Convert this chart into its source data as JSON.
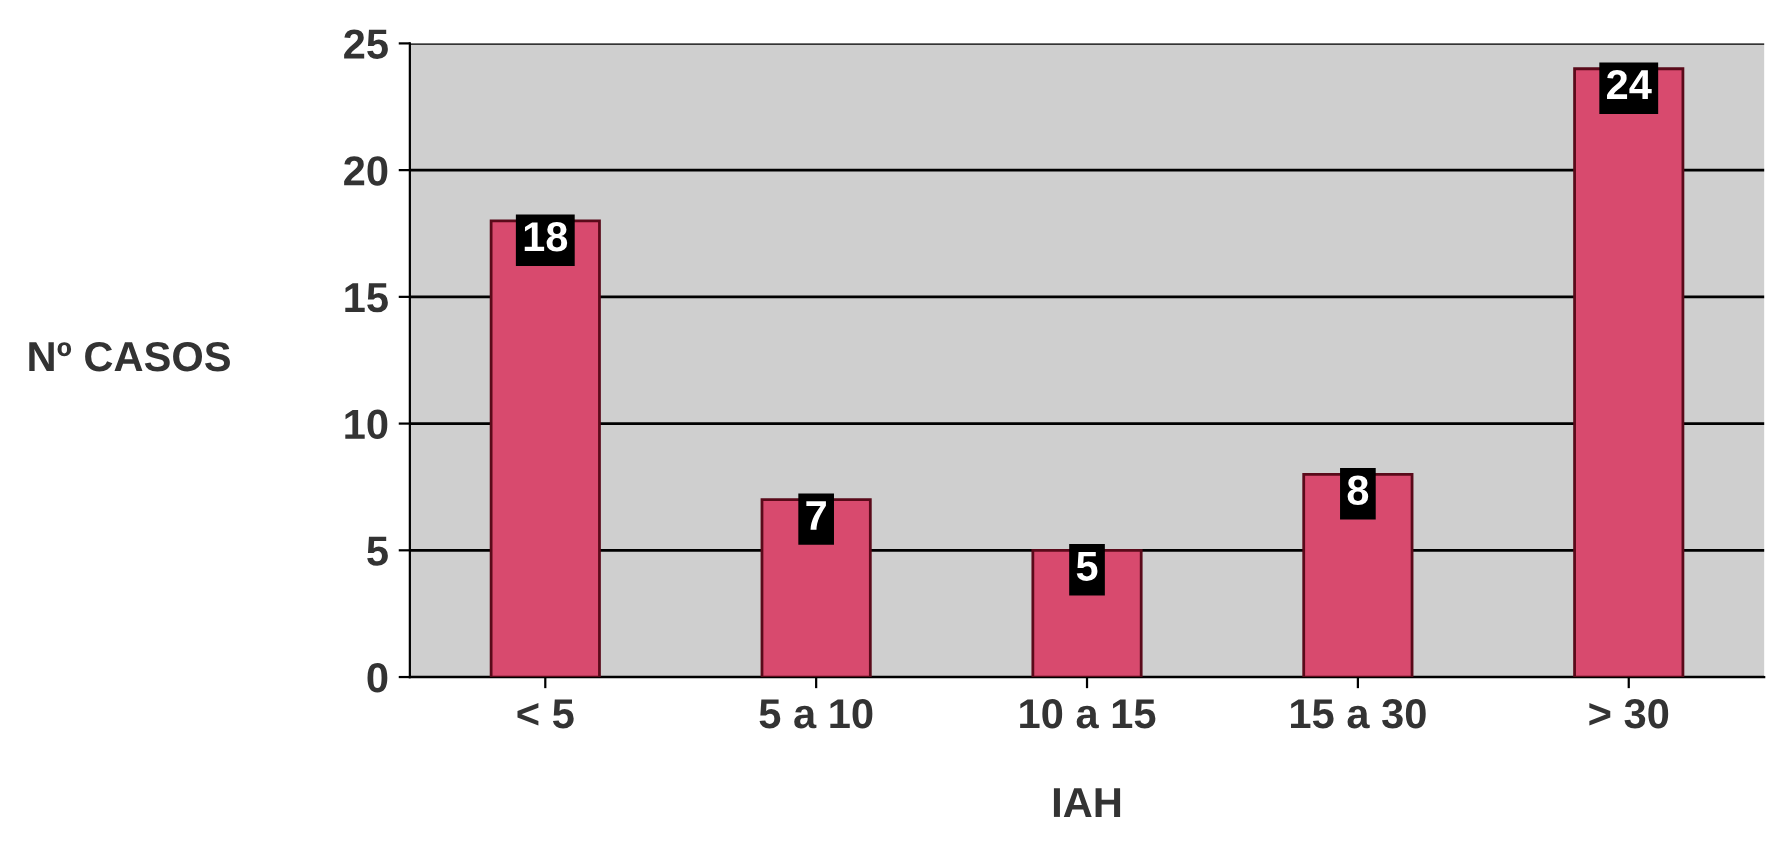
{
  "chart_data": {
    "type": "bar",
    "xlabel": "IAH",
    "ylabel": "Nº CASOS",
    "categories": [
      "< 5",
      "5 a 10",
      "10 a 15",
      "15 a 30",
      "> 30"
    ],
    "values": [
      18,
      7,
      5,
      8,
      24
    ],
    "color": "#d84a6e",
    "ylim": [
      0,
      25
    ],
    "yticks": [
      0,
      5,
      10,
      15,
      20,
      25
    ],
    "grid": "y",
    "data_labels": true
  }
}
